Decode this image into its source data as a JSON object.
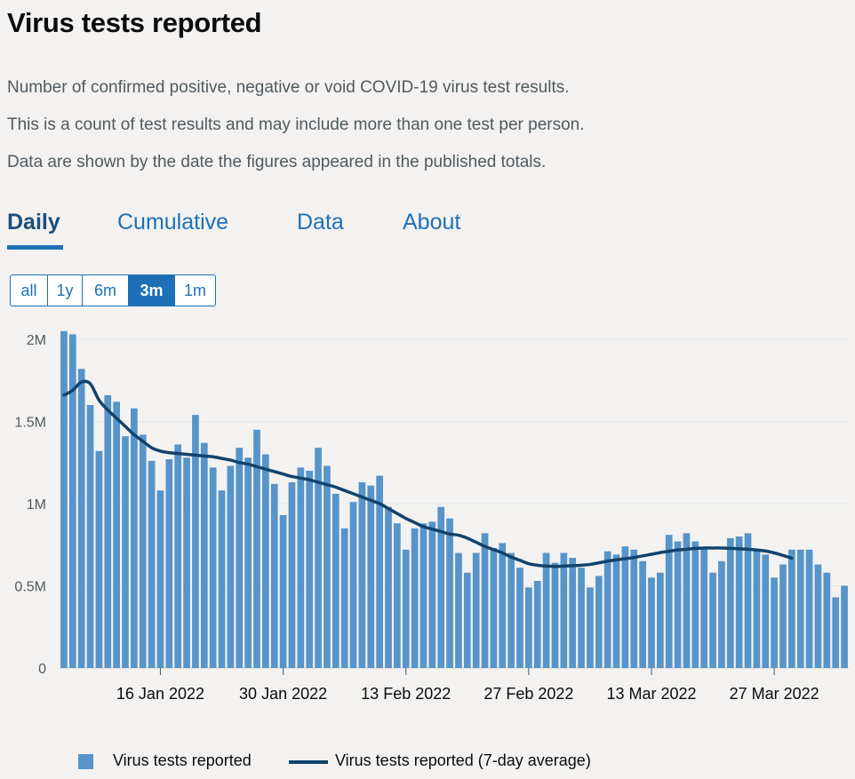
{
  "header": {
    "title": "Virus tests reported",
    "description": [
      "Number of confirmed positive, negative or void COVID-19 virus test results.",
      "This is a count of test results and may include more than one test per person.",
      "Data are shown by the date the figures appeared in the published totals."
    ]
  },
  "tabs": [
    "Daily",
    "Cumulative",
    "Data",
    "About"
  ],
  "active_tab": "Daily",
  "range_buttons": [
    "all",
    "1y",
    "6m",
    "3m",
    "1m"
  ],
  "active_range": "3m",
  "legend": {
    "bars": "Virus tests reported",
    "line": "Virus tests reported (7-day average)"
  },
  "colors": {
    "bar": "#5694ca",
    "line": "#12436d",
    "accent": "#1d70b8",
    "grid": "#e6e6e6"
  },
  "chart_data": {
    "type": "bar",
    "start_date": "2022-01-05",
    "x_tick_labels": [
      {
        "date": "2022-01-16",
        "label": "16 Jan 2022"
      },
      {
        "date": "2022-01-30",
        "label": "30 Jan 2022"
      },
      {
        "date": "2022-02-13",
        "label": "13 Feb 2022"
      },
      {
        "date": "2022-02-27",
        "label": "27 Feb 2022"
      },
      {
        "date": "2022-03-13",
        "label": "13 Mar 2022"
      },
      {
        "date": "2022-03-27",
        "label": "27 Mar 2022"
      }
    ],
    "y_ticks": [
      {
        "value": 0,
        "label": "0"
      },
      {
        "value": 500000,
        "label": "0.5M"
      },
      {
        "value": 1000000,
        "label": "1M"
      },
      {
        "value": 1500000,
        "label": "1.5M"
      },
      {
        "value": 2000000,
        "label": "2M"
      }
    ],
    "ylim": [
      0,
      2000000
    ],
    "grid": true,
    "legend_position": "bottom",
    "series": [
      {
        "name": "Virus tests reported",
        "type": "bar",
        "values": [
          2050000,
          2030000,
          1820000,
          1600000,
          1320000,
          1660000,
          1620000,
          1410000,
          1580000,
          1420000,
          1260000,
          1080000,
          1270000,
          1360000,
          1280000,
          1540000,
          1370000,
          1220000,
          1080000,
          1230000,
          1340000,
          1280000,
          1450000,
          1300000,
          1120000,
          930000,
          1130000,
          1220000,
          1200000,
          1340000,
          1230000,
          1060000,
          850000,
          1010000,
          1130000,
          1110000,
          1170000,
          980000,
          880000,
          720000,
          850000,
          880000,
          890000,
          980000,
          910000,
          700000,
          580000,
          700000,
          820000,
          730000,
          760000,
          700000,
          610000,
          490000,
          530000,
          700000,
          640000,
          700000,
          670000,
          610000,
          490000,
          560000,
          710000,
          690000,
          740000,
          720000,
          650000,
          550000,
          580000,
          810000,
          770000,
          820000,
          770000,
          730000,
          580000,
          650000,
          790000,
          800000,
          820000,
          720000,
          690000,
          550000,
          630000,
          720000,
          720000,
          720000,
          630000,
          580000,
          430000,
          500000
        ]
      },
      {
        "name": "Virus tests reported (7-day average)",
        "type": "line",
        "values": [
          1660000,
          1690000,
          1740000,
          1730000,
          1630000,
          1570000,
          1520000,
          1470000,
          1420000,
          1380000,
          1340000,
          1320000,
          1310000,
          1305000,
          1300000,
          1295000,
          1290000,
          1285000,
          1275000,
          1265000,
          1250000,
          1240000,
          1225000,
          1210000,
          1195000,
          1180000,
          1165000,
          1155000,
          1145000,
          1130000,
          1115000,
          1100000,
          1080000,
          1060000,
          1040000,
          1020000,
          1000000,
          970000,
          940000,
          910000,
          885000,
          860000,
          845000,
          830000,
          815000,
          808000,
          790000,
          765000,
          740000,
          720000,
          700000,
          675000,
          655000,
          635000,
          625000,
          620000,
          618000,
          620000,
          622000,
          625000,
          630000,
          640000,
          650000,
          658000,
          665000,
          672000,
          682000,
          692000,
          702000,
          710000,
          718000,
          722000,
          728000,
          730000,
          730000,
          730000,
          728000,
          725000,
          722000,
          718000,
          712000,
          700000,
          685000,
          668000
        ]
      }
    ]
  }
}
